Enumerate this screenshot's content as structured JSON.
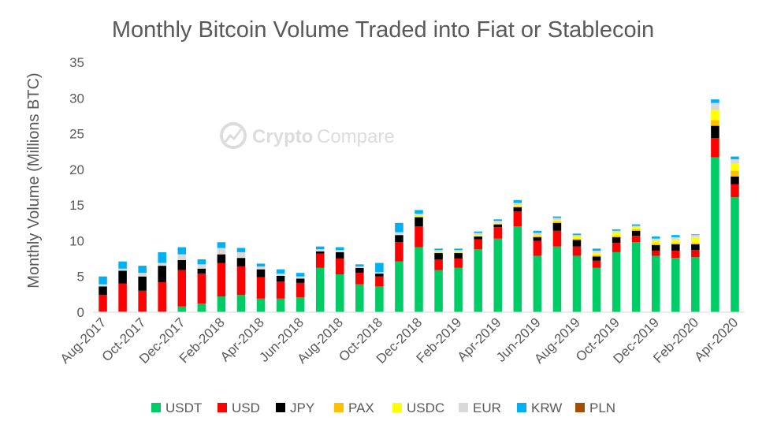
{
  "watermark": {
    "brand_a": "Crypto",
    "brand_b": "Compare"
  },
  "chart_data": {
    "type": "bar",
    "stacked": true,
    "title": "Monthly Bitcoin Volume Traded into Fiat or Stablecoin",
    "xlabel": "",
    "ylabel": "Monthly Volume (Millions BTC)",
    "ylim": [
      0,
      35
    ],
    "yticks": [
      0,
      5,
      10,
      15,
      20,
      25,
      30,
      35
    ],
    "grid": false,
    "legend_position": "bottom",
    "categories": [
      "Aug-2017",
      "Sep-2017",
      "Oct-2017",
      "Nov-2017",
      "Dec-2017",
      "Jan-2018",
      "Feb-2018",
      "Mar-2018",
      "Apr-2018",
      "May-2018",
      "Jun-2018",
      "Jul-2018",
      "Aug-2018",
      "Sep-2018",
      "Oct-2018",
      "Nov-2018",
      "Dec-2018",
      "Jan-2019",
      "Feb-2019",
      "Mar-2019",
      "Apr-2019",
      "May-2019",
      "Jun-2019",
      "Jul-2019",
      "Aug-2019",
      "Sep-2019",
      "Oct-2019",
      "Nov-2019",
      "Dec-2019",
      "Jan-2020",
      "Feb-2020",
      "Mar-2020",
      "Apr-2020"
    ],
    "tick_labels": [
      "Aug-2017",
      "Oct-2017",
      "Dec-2017",
      "Feb-2018",
      "Apr-2018",
      "Jun-2018",
      "Aug-2018",
      "Oct-2018",
      "Dec-2018",
      "Feb-2019",
      "Apr-2019",
      "Jun-2019",
      "Aug-2019",
      "Oct-2019",
      "Dec-2019",
      "Feb-2020",
      "Apr-2020"
    ],
    "series": [
      {
        "name": "USDT",
        "color": "#00cc66",
        "values": [
          0.1,
          0.1,
          0.1,
          0.1,
          0.8,
          1.2,
          2.2,
          2.4,
          1.9,
          1.9,
          2.1,
          6.2,
          5.3,
          3.9,
          3.6,
          7.1,
          9.1,
          5.9,
          6.2,
          8.8,
          10.3,
          12.0,
          7.9,
          9.2,
          7.9,
          6.2,
          8.4,
          9.8,
          7.9,
          7.6,
          7.7,
          21.7,
          16.1
        ]
      },
      {
        "name": "USD",
        "color": "#ff0000",
        "values": [
          2.3,
          3.9,
          2.9,
          4.1,
          5.1,
          4.2,
          4.7,
          4.0,
          3.0,
          2.4,
          2.0,
          2.0,
          2.2,
          1.6,
          1.4,
          2.7,
          2.9,
          1.5,
          1.3,
          1.4,
          1.6,
          2.1,
          2.1,
          2.2,
          1.3,
          1.0,
          1.3,
          0.9,
          0.7,
          1.0,
          1.0,
          2.7,
          1.8
        ]
      },
      {
        "name": "JPY",
        "color": "#000000",
        "values": [
          1.2,
          1.8,
          2.0,
          2.3,
          1.4,
          0.7,
          1.2,
          1.2,
          1.1,
          0.8,
          0.6,
          0.3,
          0.9,
          0.7,
          0.4,
          1.0,
          1.3,
          0.9,
          0.8,
          0.4,
          0.4,
          0.6,
          0.5,
          1.1,
          0.9,
          0.6,
          0.8,
          0.7,
          0.8,
          0.9,
          0.8,
          1.7,
          1.1
        ]
      },
      {
        "name": "PAX",
        "color": "#ffc000",
        "values": [
          0,
          0,
          0,
          0,
          0,
          0,
          0,
          0,
          0,
          0,
          0,
          0,
          0,
          0,
          0,
          0,
          0,
          0,
          0,
          0,
          0,
          0.1,
          0.2,
          0.2,
          0.2,
          0.2,
          0.2,
          0.2,
          0.2,
          0.2,
          0.2,
          0.8,
          0.8
        ]
      },
      {
        "name": "USDC",
        "color": "#ffff00",
        "values": [
          0,
          0,
          0,
          0,
          0,
          0,
          0,
          0,
          0,
          0,
          0,
          0,
          0,
          0,
          0,
          0,
          0.2,
          0.2,
          0.2,
          0.2,
          0.2,
          0.2,
          0.1,
          0.2,
          0.3,
          0.3,
          0.5,
          0.3,
          0.4,
          0.4,
          0.8,
          1.4,
          1.0
        ]
      },
      {
        "name": "EUR",
        "color": "#d9d9d9",
        "values": [
          0.3,
          0.3,
          0.5,
          0.4,
          0.8,
          0.6,
          0.9,
          0.8,
          0.4,
          0.3,
          0.3,
          0.3,
          0.3,
          0.2,
          0.2,
          0.4,
          0.3,
          0.2,
          0.2,
          0.3,
          0.3,
          0.3,
          0.3,
          0.3,
          0.2,
          0.3,
          0.2,
          0.2,
          0.3,
          0.4,
          0.3,
          1.0,
          0.6
        ]
      },
      {
        "name": "KRW",
        "color": "#00b0f0",
        "values": [
          1.1,
          1.0,
          1.0,
          1.5,
          1.0,
          0.7,
          0.8,
          0.6,
          0.4,
          0.6,
          0.5,
          0.4,
          0.4,
          0.3,
          1.3,
          1.3,
          0.5,
          0.2,
          0.2,
          0.2,
          0.2,
          0.4,
          0.3,
          0.2,
          0.2,
          0.3,
          0.2,
          0.2,
          0.3,
          0.3,
          0.1,
          0.5,
          0.4
        ]
      },
      {
        "name": "PLN",
        "color": "#a64d00",
        "values": [
          0,
          0,
          0,
          0,
          0,
          0,
          0,
          0,
          0,
          0,
          0,
          0,
          0,
          0,
          0,
          0,
          0,
          0,
          0,
          0,
          0,
          0,
          0,
          0,
          0,
          0,
          0,
          0,
          0,
          0,
          0,
          0,
          0
        ]
      }
    ]
  }
}
